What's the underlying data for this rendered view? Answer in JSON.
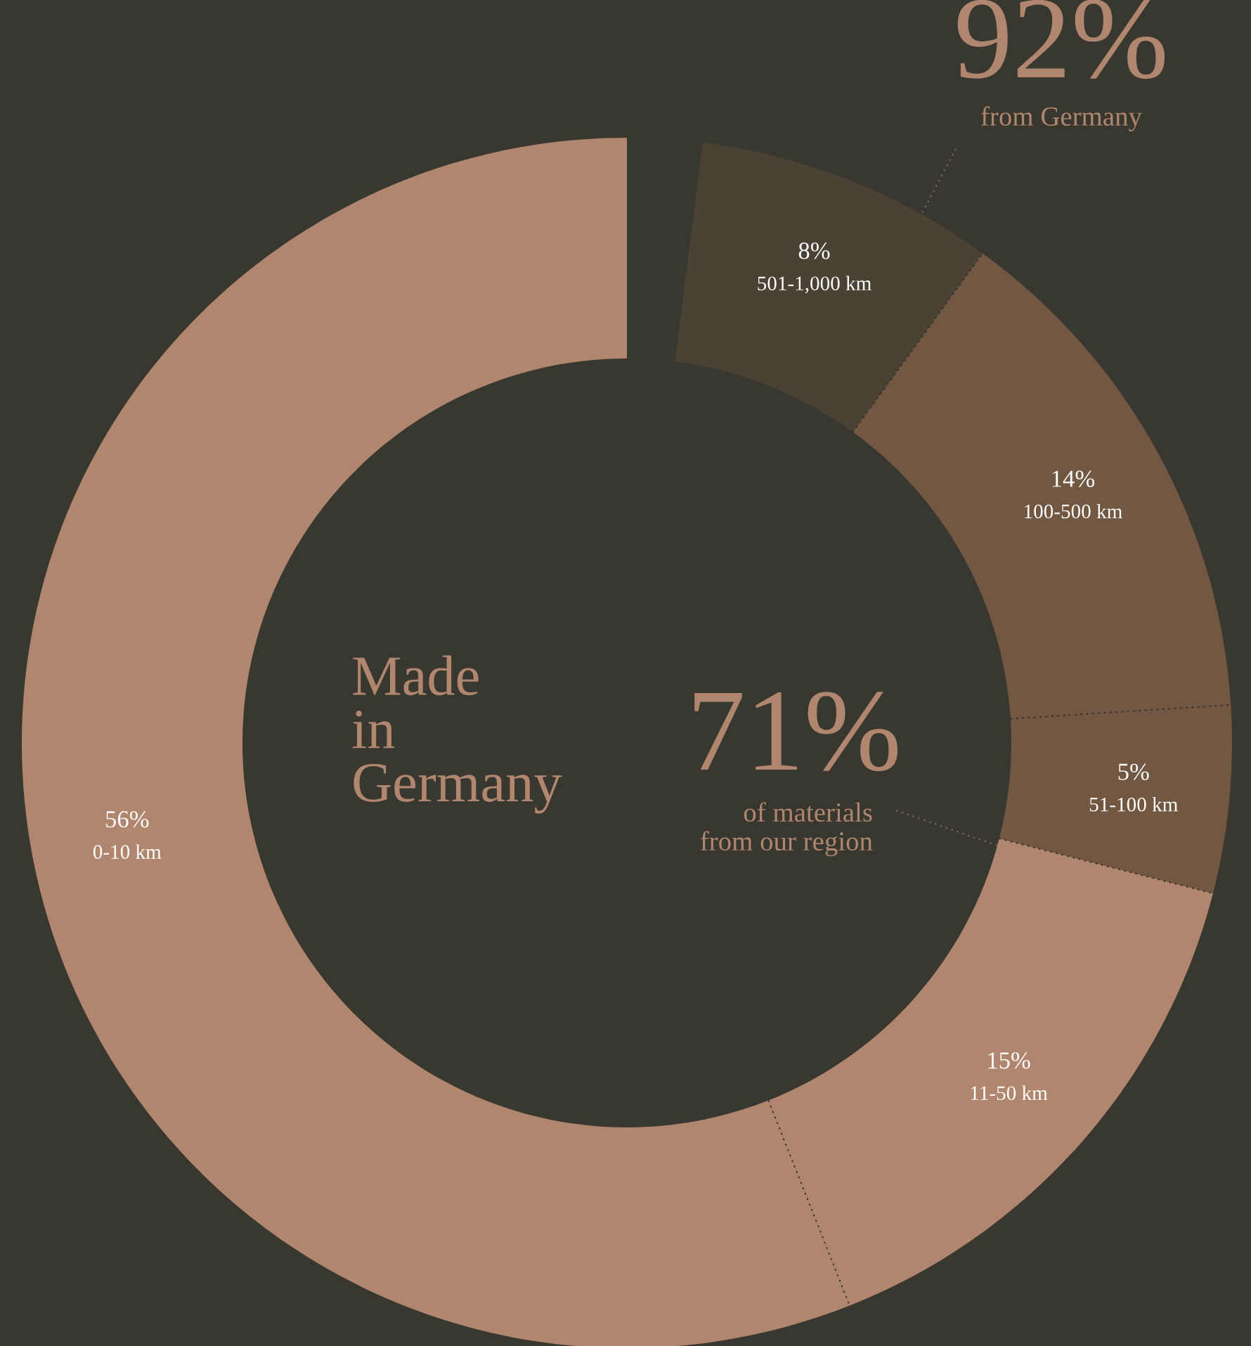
{
  "chart_data": {
    "type": "donut",
    "title": "Made\nin\nGermany",
    "categories": [
      "501-1,000 km",
      "100-500 km",
      "51-100 km",
      "11-50 km",
      "0-10 km"
    ],
    "values": [
      8,
      14,
      5,
      15,
      56
    ],
    "colors": [
      "#4b4236",
      "#725842",
      "#725842",
      "#b0876e",
      "#b0876e"
    ],
    "value_labels": [
      "8%",
      "14%",
      "5%",
      "15%",
      "56%"
    ],
    "annotations": [
      "92%",
      "from Germany",
      "71%",
      "of materials\nfrom our region"
    ]
  }
}
